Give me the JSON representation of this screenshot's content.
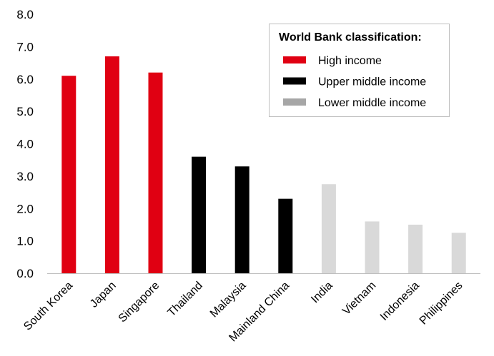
{
  "chart_data": {
    "type": "bar",
    "title": "",
    "xlabel": "",
    "ylabel": "",
    "ylim": [
      0,
      8
    ],
    "yticks": [
      "0.0",
      "1.0",
      "2.0",
      "3.0",
      "4.0",
      "5.0",
      "6.0",
      "7.0",
      "8.0"
    ],
    "grid": false,
    "legend_position": "top-right",
    "legend_title": "World Bank classification:",
    "groups": [
      {
        "name": "High income",
        "color": "#e00012"
      },
      {
        "name": "Upper middle income",
        "color": "#000000"
      },
      {
        "name": "Lower middle income",
        "color": "#d9d9d9"
      }
    ],
    "legend_swatch_colors": [
      "#e00012",
      "#000000",
      "#a6a6a6"
    ],
    "categories": [
      "South Korea",
      "Japan",
      "Singapore",
      "Thailand",
      "Malaysia",
      "Mainland China",
      "India",
      "Vietnam",
      "Indonesia",
      "Philippines"
    ],
    "values": [
      6.1,
      6.7,
      6.2,
      3.6,
      3.3,
      2.3,
      2.75,
      1.6,
      1.5,
      1.25
    ],
    "bar_groups": [
      0,
      0,
      0,
      1,
      1,
      1,
      2,
      2,
      2,
      2
    ]
  }
}
